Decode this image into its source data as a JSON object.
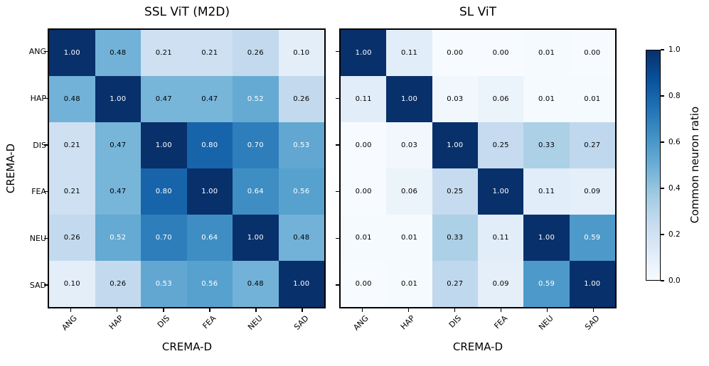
{
  "figure": {
    "xlabel": "CREMA-D",
    "ylabel": "CREMA-D",
    "categories": [
      "ANG",
      "HAP",
      "DIS",
      "FEA",
      "NEU",
      "SAD"
    ],
    "colorbar": {
      "label": "Common neuron ratio",
      "tick_labels": [
        "1.0",
        "0.8",
        "0.6",
        "0.4",
        "0.2",
        "0.0"
      ],
      "min": 0.0,
      "max": 1.0
    }
  },
  "colors": {
    "background": "#ffffff",
    "spine": "#000000",
    "annotation_dark": "#000000",
    "annotation_light": "#ffffff",
    "cmap_name": "Blues",
    "cmap_anchors": [
      [
        0.0,
        [
          247,
          251,
          255
        ]
      ],
      [
        0.125,
        [
          222,
          235,
          247
        ]
      ],
      [
        0.25,
        [
          198,
          219,
          239
        ]
      ],
      [
        0.375,
        [
          158,
          202,
          225
        ]
      ],
      [
        0.5,
        [
          107,
          174,
          214
        ]
      ],
      [
        0.625,
        [
          66,
          146,
          198
        ]
      ],
      [
        0.75,
        [
          33,
          113,
          181
        ]
      ],
      [
        0.875,
        [
          8,
          81,
          156
        ]
      ],
      [
        1.0,
        [
          8,
          48,
          107
        ]
      ]
    ]
  },
  "chart_data": [
    {
      "type": "heatmap",
      "title": "SSL ViT (M2D)",
      "xlabel": "CREMA-D",
      "ylabel": "CREMA-D",
      "colormap": "Blues",
      "vmin": 0.0,
      "vmax": 1.0,
      "y_tick_labels_visible": true,
      "x_categories": [
        "ANG",
        "HAP",
        "DIS",
        "FEA",
        "NEU",
        "SAD"
      ],
      "y_categories": [
        "ANG",
        "HAP",
        "DIS",
        "FEA",
        "NEU",
        "SAD"
      ],
      "values": [
        [
          1.0,
          0.48,
          0.21,
          0.21,
          0.26,
          0.1
        ],
        [
          0.48,
          1.0,
          0.47,
          0.47,
          0.52,
          0.26
        ],
        [
          0.21,
          0.47,
          1.0,
          0.8,
          0.7,
          0.53
        ],
        [
          0.21,
          0.47,
          0.8,
          1.0,
          0.64,
          0.56
        ],
        [
          0.26,
          0.52,
          0.7,
          0.64,
          1.0,
          0.48
        ],
        [
          0.1,
          0.26,
          0.53,
          0.56,
          0.48,
          1.0
        ]
      ]
    },
    {
      "type": "heatmap",
      "title": "SL ViT",
      "xlabel": "CREMA-D",
      "colormap": "Blues",
      "vmin": 0.0,
      "vmax": 1.0,
      "y_tick_labels_visible": false,
      "x_categories": [
        "ANG",
        "HAP",
        "DIS",
        "FEA",
        "NEU",
        "SAD"
      ],
      "y_categories": [
        "ANG",
        "HAP",
        "DIS",
        "FEA",
        "NEU",
        "SAD"
      ],
      "values": [
        [
          1.0,
          0.11,
          0.0,
          0.0,
          0.01,
          0.0
        ],
        [
          0.11,
          1.0,
          0.03,
          0.06,
          0.01,
          0.01
        ],
        [
          0.0,
          0.03,
          1.0,
          0.25,
          0.33,
          0.27
        ],
        [
          0.0,
          0.06,
          0.25,
          1.0,
          0.11,
          0.09
        ],
        [
          0.01,
          0.01,
          0.33,
          0.11,
          1.0,
          0.59
        ],
        [
          0.0,
          0.01,
          0.27,
          0.09,
          0.59,
          1.0
        ]
      ]
    }
  ]
}
